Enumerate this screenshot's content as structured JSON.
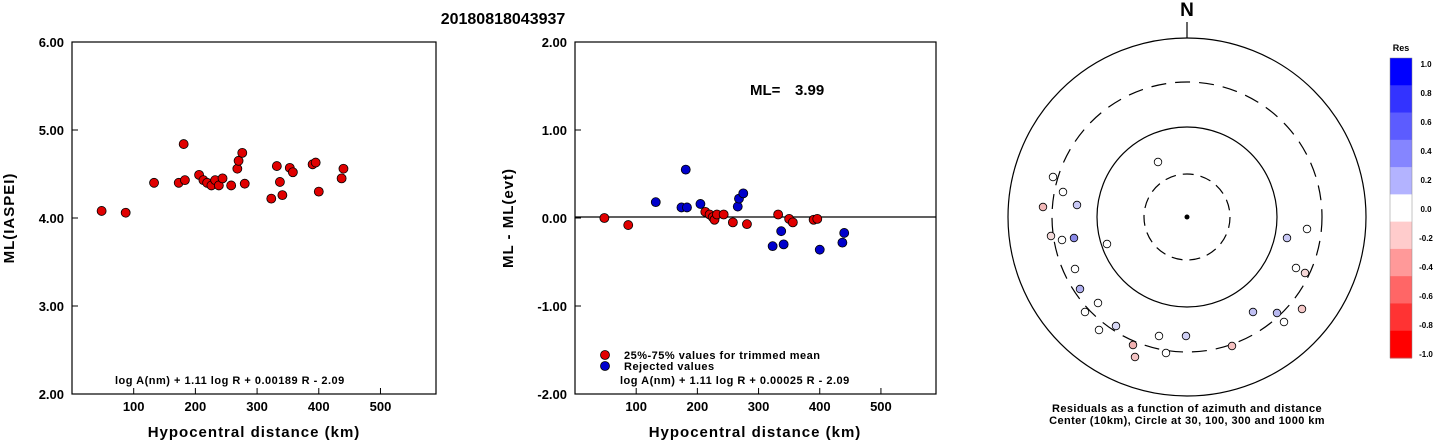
{
  "title": "20180818043937",
  "chart_data": [
    {
      "type": "scatter",
      "xlabel": "Hypocentral distance (km)",
      "ylabel": "ML(IASPEI)",
      "xlim": [
        0,
        590
      ],
      "ylim": [
        2.0,
        6.0
      ],
      "xticks": [
        "100",
        "200",
        "300",
        "400",
        "500"
      ],
      "yticks": [
        "2.00",
        "3.00",
        "4.00",
        "5.00",
        "6.00"
      ],
      "formula": "log A(nm) + 1.11 log R + 0.00189 R - 2.09",
      "series": [
        {
          "color": "#e00000",
          "points": [
            [
              48,
              4.08
            ],
            [
              87,
              4.06
            ],
            [
              133,
              4.4
            ],
            [
              173,
              4.4
            ],
            [
              181,
              4.84
            ],
            [
              183,
              4.43
            ],
            [
              206,
              4.49
            ],
            [
              213,
              4.43
            ],
            [
              219,
              4.4
            ],
            [
              226,
              4.37
            ],
            [
              232,
              4.43
            ],
            [
              238,
              4.37
            ],
            [
              244,
              4.45
            ],
            [
              258,
              4.37
            ],
            [
              268,
              4.56
            ],
            [
              270,
              4.65
            ],
            [
              276,
              4.74
            ],
            [
              280,
              4.39
            ],
            [
              323,
              4.22
            ],
            [
              332,
              4.59
            ],
            [
              337,
              4.41
            ],
            [
              341,
              4.26
            ],
            [
              353,
              4.57
            ],
            [
              358,
              4.52
            ],
            [
              390,
              4.61
            ],
            [
              395,
              4.63
            ],
            [
              400,
              4.3
            ],
            [
              437,
              4.45
            ],
            [
              440,
              4.56
            ]
          ]
        }
      ]
    },
    {
      "type": "scatter",
      "xlabel": "Hypocentral distance (km)",
      "ylabel": "ML - ML(evt)",
      "xlim": [
        0,
        590
      ],
      "ylim": [
        -2.0,
        2.0
      ],
      "xticks": [
        "100",
        "200",
        "300",
        "400",
        "500"
      ],
      "yticks": [
        "-2.00",
        "-1.00",
        "0.00",
        "1.00",
        "2.00"
      ],
      "ml_label": "ML=",
      "ml_value": "3.99",
      "formula": "log A(nm) + 1.11 log R + 0.00025 R - 2.09",
      "legend": [
        "25%-75% values for trimmed mean",
        "Rejected values"
      ],
      "series": [
        {
          "name": "25%-75% values for trimmed mean",
          "color": "#e00000",
          "points": [
            [
              48,
              0.0
            ],
            [
              87,
              -0.08
            ],
            [
              213,
              0.07
            ],
            [
              220,
              0.04
            ],
            [
              225,
              0.01
            ],
            [
              228,
              -0.02
            ],
            [
              232,
              0.04
            ],
            [
              243,
              0.04
            ],
            [
              258,
              -0.05
            ],
            [
              281,
              -0.07
            ],
            [
              332,
              0.04
            ],
            [
              350,
              -0.01
            ],
            [
              356,
              -0.05
            ],
            [
              390,
              -0.02
            ],
            [
              396,
              -0.01
            ]
          ]
        },
        {
          "name": "Rejected values",
          "color": "#0000cc",
          "points": [
            [
              132,
              0.18
            ],
            [
              174,
              0.12
            ],
            [
              181,
              0.55
            ],
            [
              183,
              0.12
            ],
            [
              205,
              0.16
            ],
            [
              266,
              0.13
            ],
            [
              268,
              0.22
            ],
            [
              275,
              0.28
            ],
            [
              323,
              -0.32
            ],
            [
              337,
              -0.15
            ],
            [
              341,
              -0.3
            ],
            [
              400,
              -0.36
            ],
            [
              437,
              -0.28
            ],
            [
              440,
              -0.17
            ]
          ]
        }
      ]
    },
    {
      "type": "polar-scatter",
      "north_label": "N",
      "caption": [
        "Residuals as a function of azimuth and distance",
        "Center (10km), Circle at 30, 100, 300 and 1000 km"
      ],
      "colorbar": {
        "title": "Res",
        "labels": [
          "1.0",
          "0.8",
          "0.6",
          "0.4",
          "0.2",
          "0.0",
          "-0.2",
          "-0.4",
          "-0.6",
          "-0.8",
          "-1.0"
        ],
        "colors": [
          "#0000ff",
          "#3333ff",
          "#5c5cff",
          "#8585ff",
          "#b3b3ff",
          "#ffffff",
          "#ffcccc",
          "#ff9999",
          "#ff6666",
          "#ff3333",
          "#ff0000"
        ]
      },
      "stations": [
        [
          1158,
          162,
          "#ffffff"
        ],
        [
          1053,
          177,
          "#ffffff"
        ],
        [
          1063,
          192,
          "#ffffff"
        ],
        [
          1043,
          207,
          "#f2b8b8"
        ],
        [
          1077,
          205,
          "#c8c8f5"
        ],
        [
          1051,
          236,
          "#f3dada"
        ],
        [
          1062,
          240,
          "#ffffff"
        ],
        [
          1074,
          238,
          "#8a8ae8"
        ],
        [
          1107,
          244,
          "#ffffff"
        ],
        [
          1075,
          269,
          "#ffffff"
        ],
        [
          1080,
          289,
          "#b0b0f0"
        ],
        [
          1098,
          303,
          "#ffffff"
        ],
        [
          1085,
          312,
          "#ffffff"
        ],
        [
          1099,
          330,
          "#ffffff"
        ],
        [
          1116,
          326,
          "#d8d8f5"
        ],
        [
          1133,
          345,
          "#f0b0b0"
        ],
        [
          1135,
          357,
          "#f3c3c3"
        ],
        [
          1159,
          336,
          "#ffffff"
        ],
        [
          1166,
          353,
          "#ffffff"
        ],
        [
          1186,
          336,
          "#d0d0f5"
        ],
        [
          1232,
          346,
          "#f5c0c0"
        ],
        [
          1253,
          312,
          "#c0c0f3"
        ],
        [
          1277,
          313,
          "#b8b8f0"
        ],
        [
          1284,
          322,
          "#ffffff"
        ],
        [
          1302,
          309,
          "#f5c8c8"
        ],
        [
          1287,
          238,
          "#c8c8f5"
        ],
        [
          1307,
          229,
          "#ffffff"
        ],
        [
          1296,
          268,
          "#ffffff"
        ],
        [
          1305,
          273,
          "#f7d8d8"
        ]
      ]
    }
  ]
}
